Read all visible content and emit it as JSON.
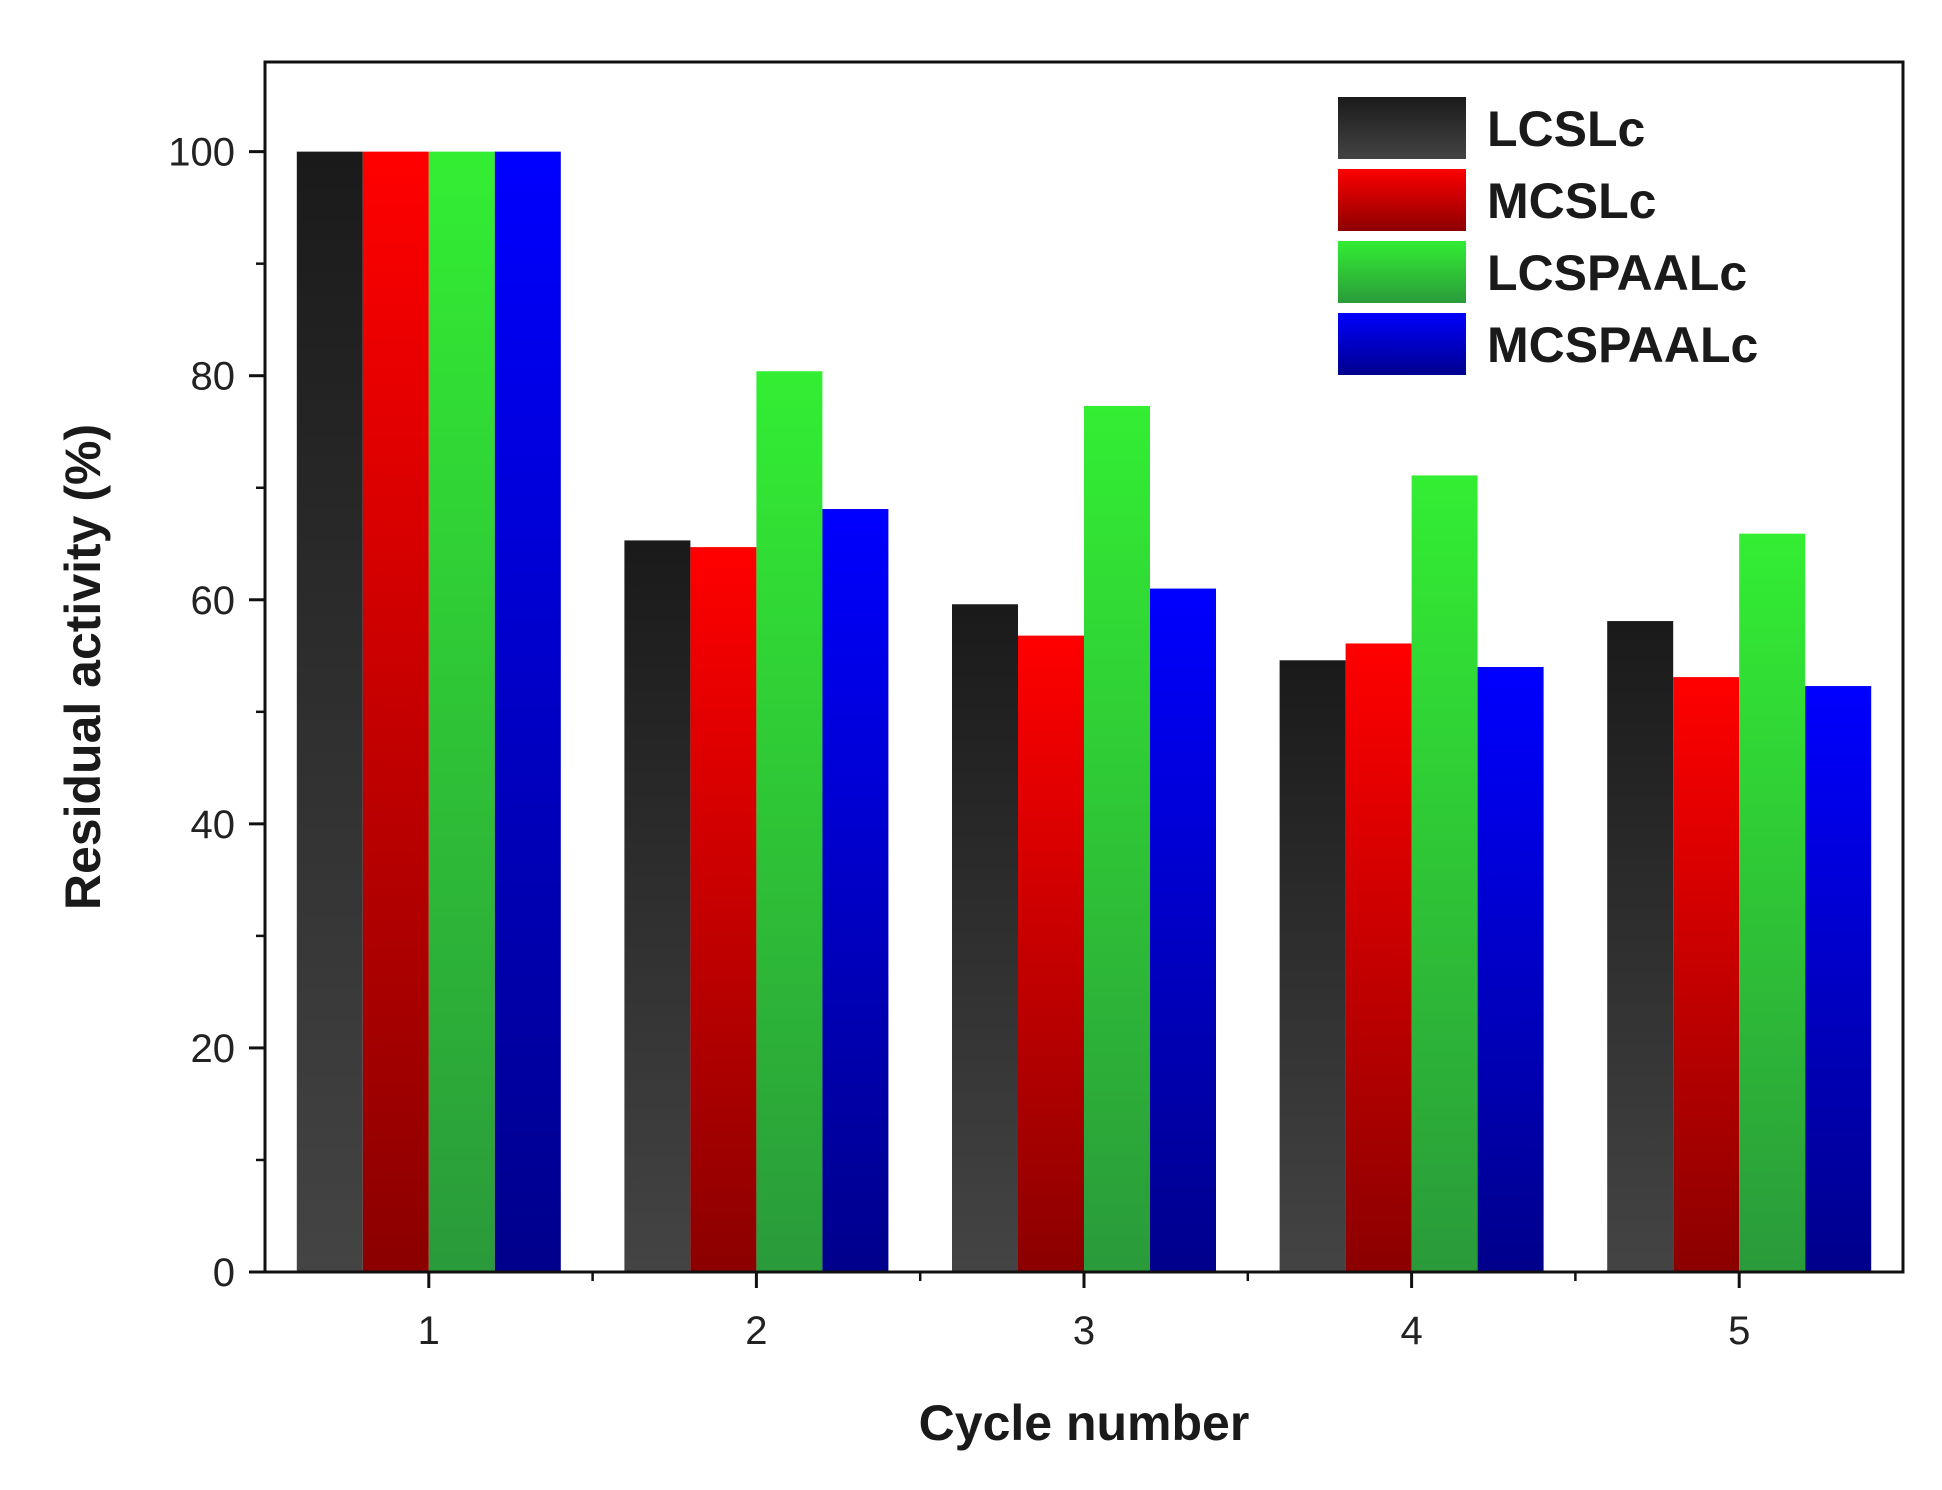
{
  "chart_data": {
    "type": "bar",
    "title": "",
    "xlabel": "Cycle number",
    "ylabel": "Residual activity (%)",
    "categories": [
      "1",
      "2",
      "3",
      "4",
      "5"
    ],
    "ylim": [
      0,
      108
    ],
    "yticks": [
      "0",
      "20",
      "40",
      "60",
      "80",
      "100"
    ],
    "grid": false,
    "legend_position": "top-right",
    "series": [
      {
        "name": "LCSLc",
        "color": "#1a1a1a",
        "color_light": "#444444",
        "values": [
          100,
          65.3,
          59.6,
          54.6,
          58.1
        ]
      },
      {
        "name": "MCSLc",
        "color": "#ff0000",
        "color_light": "#8b0000",
        "values": [
          100,
          64.7,
          56.8,
          56.1,
          53.1
        ]
      },
      {
        "name": "LCSPAALc",
        "color": "#33ee33",
        "color_light": "#2a9a3a",
        "values": [
          100,
          80.4,
          77.3,
          71.1,
          65.9
        ]
      },
      {
        "name": "MCSPAALc",
        "color": "#0000ff",
        "color_light": "#00008b",
        "values": [
          100,
          68.1,
          61.0,
          54.0,
          52.3
        ]
      }
    ]
  }
}
